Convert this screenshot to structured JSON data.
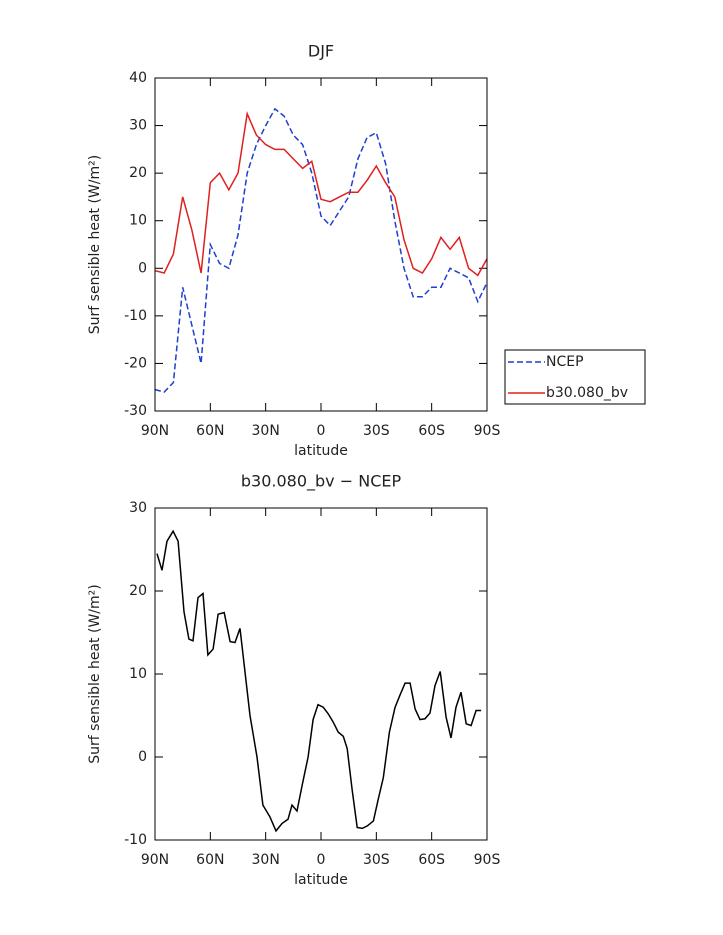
{
  "chart_data": [
    {
      "type": "line",
      "title": "DJF",
      "xlabel": "latitude",
      "ylabel": "Surf sensible heat (W/m²)",
      "x": [
        90,
        85,
        80,
        75,
        70,
        65,
        60,
        55,
        50,
        45,
        40,
        35,
        30,
        25,
        20,
        15,
        10,
        5,
        0,
        -5,
        -10,
        -15,
        -20,
        -25,
        -30,
        -35,
        -40,
        -45,
        -50,
        -55,
        -60,
        -65,
        -70,
        -75,
        -80,
        -85,
        -90
      ],
      "series": [
        {
          "name": "NCEP",
          "color": "#1f3fd0",
          "style": "dashed",
          "values": [
            -25.5,
            -26,
            -24,
            -4,
            -12,
            -20,
            5,
            1,
            0,
            7,
            20,
            26,
            30,
            33.5,
            32,
            28,
            26,
            20,
            11,
            9,
            12,
            15,
            23,
            27.5,
            28.5,
            22,
            10,
            0,
            -6,
            -6,
            -4,
            -4,
            0,
            -1,
            -2,
            -7,
            -3
          ]
        },
        {
          "name": "b30.080_bv",
          "color": "#e02020",
          "style": "solid",
          "values": [
            -0.5,
            -1,
            3,
            15,
            8,
            -1,
            18,
            20,
            16.5,
            20,
            32.5,
            28,
            26,
            25,
            25,
            23,
            21,
            22.5,
            14.5,
            14,
            15,
            16,
            16,
            18.5,
            21.5,
            18,
            15,
            6,
            0,
            -1,
            2,
            6.5,
            4,
            6.5,
            0,
            -1.5,
            2
          ]
        }
      ],
      "xlim": [
        90,
        -90
      ],
      "xticks": [
        {
          "value": 90,
          "label": "90N"
        },
        {
          "value": 60,
          "label": "60N"
        },
        {
          "value": 30,
          "label": "30N"
        },
        0,
        {
          "value": -30,
          "label": "30S"
        },
        {
          "value": -60,
          "label": "60S"
        },
        {
          "value": -90,
          "label": "90S"
        }
      ],
      "ylim": [
        -30,
        40
      ],
      "yticks": [
        -30,
        -20,
        -10,
        0,
        10,
        20,
        30,
        40
      ],
      "legend": "outside right"
    },
    {
      "type": "line",
      "title": "b30.080_bv − NCEP",
      "xlabel": "latitude",
      "ylabel": "Surf sensible heat (W/m²)",
      "x": [
        88.9,
        86.2,
        83.5,
        80.2,
        77.5,
        74.3,
        71.6,
        69.4,
        66.7,
        64.0,
        61.3,
        58.5,
        55.8,
        52.5,
        49.3,
        46.6,
        43.9,
        38.5,
        34.7,
        31.5,
        27.7,
        24.4,
        21.1,
        17.9,
        15.7,
        13.0,
        10.3,
        7.0,
        4.3,
        1.6,
        -1.2,
        -3.9,
        -6.6,
        -9.3,
        -12.1,
        -14.2,
        -16.9,
        -19.6,
        -22.4,
        -25.1,
        -28.4,
        -31.1,
        -33.8,
        -37.1,
        -40.2,
        -42.9,
        -45.6,
        -48.3,
        -51.0,
        -53.7,
        -56.4,
        -59.1,
        -61.8,
        -64.6,
        -67.8,
        -70.5,
        -73.2,
        -75.9,
        -78.7,
        -81.4,
        -84.1,
        -86.8
      ],
      "series": [
        {
          "color": "#000000",
          "values": [
            24.5,
            22.5,
            26,
            27.2,
            26,
            17.5,
            14.2,
            14,
            19.2,
            19.7,
            12.3,
            13,
            17.2,
            17.4,
            13.9,
            13.8,
            15.5,
            5,
            0,
            -5.8,
            -7.2,
            -8.9,
            -8,
            -7.5,
            -5.8,
            -6.5,
            -3.5,
            0,
            4.5,
            6.3,
            6,
            5.2,
            4.2,
            3,
            2.5,
            1,
            -4,
            -8.5,
            -8.6,
            -8.3,
            -7.7,
            -5,
            -2.5,
            3,
            6,
            7.5,
            8.9,
            8.9,
            5.8,
            4.5,
            4.6,
            5.3,
            8.6,
            10.3,
            4.8,
            2.3,
            6,
            7.8,
            4,
            3.8,
            5.6,
            5.6
          ]
        }
      ],
      "xlim": [
        90,
        -90
      ],
      "xticks": [
        {
          "value": 90,
          "label": "90N"
        },
        {
          "value": 60,
          "label": "60N"
        },
        {
          "value": 30,
          "label": "30N"
        },
        0,
        {
          "value": -30,
          "label": "30S"
        },
        {
          "value": -60,
          "label": "60S"
        },
        {
          "value": -90,
          "label": "90S"
        }
      ],
      "ylim": [
        -10,
        30
      ],
      "yticks": [
        -10,
        0,
        10,
        20,
        30
      ]
    }
  ]
}
